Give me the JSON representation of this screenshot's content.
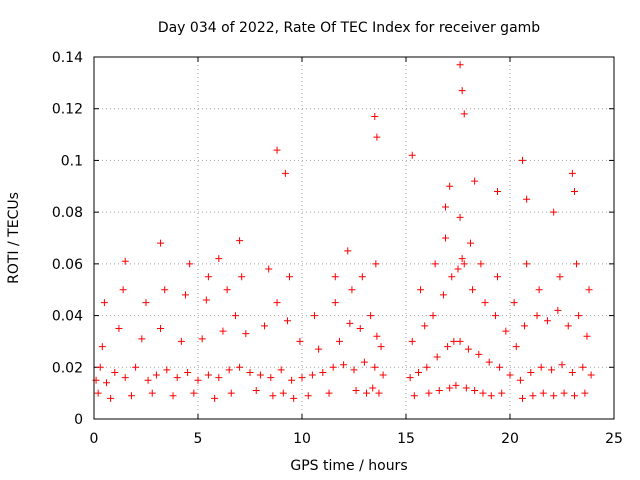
{
  "chart_data": {
    "type": "scatter",
    "title": "Day 034 of 2022, Rate Of TEC Index for receiver gamb",
    "xlabel": "GPS time / hours",
    "ylabel": "ROTI / TECUs",
    "xlim": [
      0,
      25
    ],
    "ylim": [
      0,
      0.14
    ],
    "xticks": [
      0,
      5,
      10,
      15,
      20,
      25
    ],
    "yticks": [
      0,
      0.02,
      0.04,
      0.06,
      0.08,
      0.1,
      0.12,
      0.14
    ],
    "xtick_labels": [
      "0",
      "5",
      "10",
      "15",
      "20",
      "25"
    ],
    "ytick_labels": [
      "0",
      "0.02",
      "0.04",
      "0.06",
      "0.08",
      "0.1",
      "0.12",
      "0.14"
    ],
    "grid": true,
    "marker": "plus",
    "color": "#ff0000",
    "series": [
      {
        "x": [
          0.1,
          0.3,
          0.6,
          1.0,
          1.5,
          2.0,
          2.6,
          3.0,
          3.5,
          4.0,
          4.5,
          5.0,
          5.5,
          6.0,
          6.5,
          7.0,
          7.5,
          8.0,
          8.5,
          9.0,
          9.5,
          10.0,
          10.5,
          11.0,
          11.5,
          12.0,
          12.5,
          13.0,
          13.5,
          13.9,
          15.2,
          15.6,
          16.0,
          16.5,
          17.0,
          17.3,
          17.6,
          18.0,
          18.5,
          19.0,
          19.5,
          20.0,
          20.5,
          21.0,
          21.5,
          22.0,
          22.5,
          23.0,
          23.5,
          23.9,
          0.4,
          1.2,
          2.3,
          3.2,
          4.2,
          5.2,
          6.2,
          6.8,
          7.3,
          8.2,
          8.8,
          9.3,
          9.9,
          10.8,
          11.8,
          12.3,
          12.8,
          13.3,
          13.6,
          13.8,
          15.3,
          15.9,
          16.3,
          16.8,
          17.2,
          17.5,
          17.7,
          17.8,
          18.2,
          18.8,
          19.3,
          19.8,
          20.3,
          20.7,
          21.3,
          21.8,
          22.3,
          22.8,
          23.3,
          23.7,
          0.2,
          0.8,
          1.8,
          2.8,
          3.8,
          4.8,
          5.8,
          6.6,
          7.8,
          8.6,
          9.1,
          9.6,
          10.3,
          11.3,
          12.6,
          13.1,
          13.4,
          13.7,
          15.4,
          16.1,
          16.6,
          17.1,
          17.4,
          17.9,
          18.3,
          18.7,
          19.1,
          19.6,
          20.6,
          21.1,
          21.6,
          22.1,
          22.6,
          23.1,
          23.6,
          0.5,
          1.4,
          2.5,
          3.4,
          4.4,
          5.4,
          6.4,
          7.1,
          8.4,
          9.4,
          10.6,
          11.6,
          12.4,
          12.9,
          13.55,
          15.7,
          16.4,
          16.9,
          17.6,
          18.1,
          18.6,
          19.4,
          20.2,
          20.8,
          21.4,
          22.4,
          23.2,
          23.8,
          3.2,
          4.6,
          8.8,
          9.2,
          13.5,
          13.6,
          16.9,
          17.1,
          17.6,
          17.7,
          17.8,
          18.3,
          19.4,
          20.6,
          20.8,
          23.0,
          23.1,
          12.2,
          11.6,
          6.0,
          1.5,
          5.5,
          7.0,
          15.3,
          22.1
        ],
        "y": [
          0.015,
          0.02,
          0.014,
          0.018,
          0.016,
          0.02,
          0.015,
          0.017,
          0.019,
          0.016,
          0.018,
          0.015,
          0.017,
          0.016,
          0.019,
          0.02,
          0.018,
          0.017,
          0.016,
          0.019,
          0.015,
          0.016,
          0.017,
          0.018,
          0.02,
          0.021,
          0.019,
          0.022,
          0.02,
          0.017,
          0.016,
          0.018,
          0.02,
          0.024,
          0.028,
          0.03,
          0.03,
          0.027,
          0.025,
          0.022,
          0.02,
          0.017,
          0.015,
          0.018,
          0.02,
          0.019,
          0.021,
          0.018,
          0.02,
          0.017,
          0.028,
          0.035,
          0.031,
          0.035,
          0.03,
          0.031,
          0.034,
          0.04,
          0.033,
          0.036,
          0.045,
          0.038,
          0.03,
          0.027,
          0.03,
          0.037,
          0.035,
          0.04,
          0.032,
          0.028,
          0.03,
          0.036,
          0.04,
          0.048,
          0.055,
          0.058,
          0.062,
          0.06,
          0.05,
          0.045,
          0.04,
          0.034,
          0.028,
          0.036,
          0.04,
          0.038,
          0.042,
          0.036,
          0.04,
          0.032,
          0.01,
          0.008,
          0.009,
          0.01,
          0.009,
          0.01,
          0.008,
          0.01,
          0.011,
          0.009,
          0.01,
          0.008,
          0.009,
          0.01,
          0.011,
          0.01,
          0.012,
          0.01,
          0.009,
          0.01,
          0.011,
          0.012,
          0.013,
          0.012,
          0.011,
          0.01,
          0.009,
          0.01,
          0.008,
          0.009,
          0.01,
          0.009,
          0.01,
          0.009,
          0.01,
          0.045,
          0.05,
          0.045,
          0.05,
          0.048,
          0.046,
          0.05,
          0.055,
          0.058,
          0.055,
          0.04,
          0.045,
          0.05,
          0.055,
          0.06,
          0.05,
          0.06,
          0.07,
          0.078,
          0.068,
          0.06,
          0.055,
          0.045,
          0.06,
          0.05,
          0.055,
          0.06,
          0.05,
          0.068,
          0.06,
          0.104,
          0.095,
          0.117,
          0.109,
          0.082,
          0.09,
          0.137,
          0.127,
          0.118,
          0.092,
          0.088,
          0.1,
          0.085,
          0.095,
          0.088,
          0.065,
          0.055,
          0.062,
          0.061,
          0.055,
          0.069,
          0.102,
          0.08
        ]
      }
    ]
  }
}
